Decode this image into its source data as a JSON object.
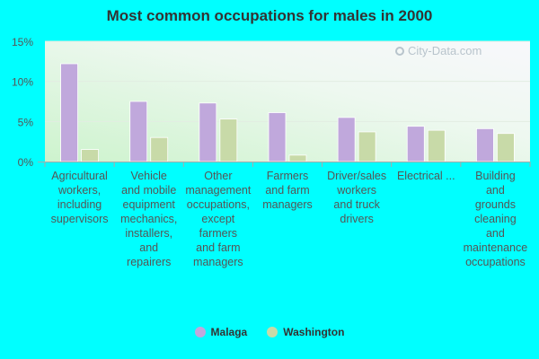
{
  "chart_data": {
    "type": "bar",
    "title": "Most common occupations for males in 2000",
    "xlabel": "",
    "ylabel": "",
    "ylim": [
      0,
      15
    ],
    "yticks": [
      "0%",
      "5%",
      "10%",
      "15%"
    ],
    "grid": true,
    "legend_position": "bottom",
    "categories": [
      "Agricultural workers, including supervisors",
      "Vehicle and mobile equipment mechanics, installers, and repairers",
      "Other management occupations, except farmers and farm managers",
      "Farmers and farm managers",
      "Driver/sales workers and truck drivers",
      "Electrical ...",
      "Building and grounds cleaning and maintenance occupations"
    ],
    "category_lines": [
      [
        "Agricultural",
        "workers,",
        "including",
        "supervisors"
      ],
      [
        "Vehicle",
        "and mobile",
        "equipment",
        "mechanics,",
        "installers,",
        "and",
        "repairers"
      ],
      [
        "Other",
        "management",
        "occupations,",
        "except",
        "farmers",
        "and farm",
        "managers"
      ],
      [
        "Farmers",
        "and farm",
        "managers"
      ],
      [
        "Driver/sales",
        "workers",
        "and truck",
        "drivers"
      ],
      [
        "Electrical ..."
      ],
      [
        "Building",
        "and",
        "grounds",
        "cleaning",
        "and",
        "maintenance",
        "occupations"
      ]
    ],
    "series": [
      {
        "name": "Malaga",
        "color": "#C0A8DC",
        "values": [
          12.2,
          7.5,
          7.3,
          6.1,
          5.5,
          4.4,
          4.1
        ]
      },
      {
        "name": "Washington",
        "color": "#C8DAA8",
        "values": [
          1.5,
          3.0,
          5.3,
          0.8,
          3.7,
          3.9,
          3.5
        ]
      }
    ]
  },
  "watermark": "City-Data.com",
  "colors": {
    "background": "#00FFFF",
    "plot_bg_left": "#d8f5d8",
    "plot_bg_right": "#f6f6fa",
    "text": "#333333",
    "axis_text": "#555555"
  }
}
